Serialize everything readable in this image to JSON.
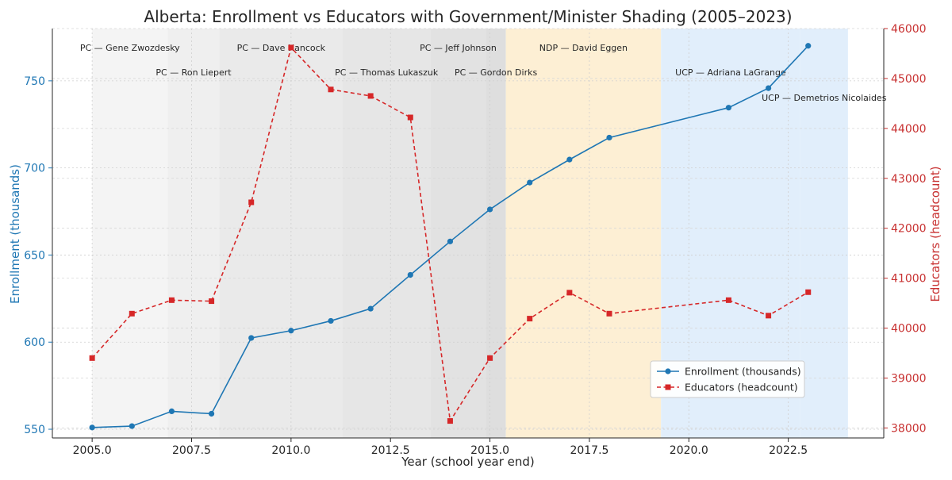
{
  "chart_data": {
    "type": "line",
    "title": "Alberta: Enrollment vs Educators with Government/Minister Shading (2005–2023)",
    "xlabel": "Year (school year end)",
    "ylabel_left": "Enrollment (thousands)",
    "ylabel_right": "Educators (headcount)",
    "xlim": [
      2004.0,
      2024.9
    ],
    "ylim_left": [
      545,
      780
    ],
    "ylim_right": [
      37800,
      46000
    ],
    "x_ticks": [
      {
        "value": 2005.0,
        "label": "2005.0"
      },
      {
        "value": 2007.5,
        "label": "2007.5"
      },
      {
        "value": 2010.0,
        "label": "2010.0"
      },
      {
        "value": 2012.5,
        "label": "2012.5"
      },
      {
        "value": 2015.0,
        "label": "2015.0"
      },
      {
        "value": 2017.5,
        "label": "2017.5"
      },
      {
        "value": 2020.0,
        "label": "2020.0"
      },
      {
        "value": 2022.5,
        "label": "2022.5"
      }
    ],
    "y_ticks_left": [
      {
        "value": 550,
        "label": "550"
      },
      {
        "value": 600,
        "label": "600"
      },
      {
        "value": 650,
        "label": "650"
      },
      {
        "value": 700,
        "label": "700"
      },
      {
        "value": 750,
        "label": "750"
      }
    ],
    "y_ticks_right": [
      {
        "value": 38000,
        "label": "38000"
      },
      {
        "value": 39000,
        "label": "39000"
      },
      {
        "value": 40000,
        "label": "40000"
      },
      {
        "value": 41000,
        "label": "41000"
      },
      {
        "value": 42000,
        "label": "42000"
      },
      {
        "value": 43000,
        "label": "43000"
      },
      {
        "value": 44000,
        "label": "44000"
      },
      {
        "value": 45000,
        "label": "45000"
      },
      {
        "value": 46000,
        "label": "46000"
      }
    ],
    "grid": true,
    "legend_position": "lower-right",
    "series": [
      {
        "name": "Enrollment (thousands)",
        "axis": "left",
        "color": "#1f77b4",
        "style": "solid",
        "marker": "circle",
        "points": [
          {
            "x": 2005,
            "y": 551
          },
          {
            "x": 2006,
            "y": 551.8
          },
          {
            "x": 2007,
            "y": 560.3
          },
          {
            "x": 2008,
            "y": 558.9
          },
          {
            "x": 2009,
            "y": 602.4
          },
          {
            "x": 2010,
            "y": 606.6
          },
          {
            "x": 2011,
            "y": 612.2
          },
          {
            "x": 2012,
            "y": 619.2
          },
          {
            "x": 2013,
            "y": 638.6
          },
          {
            "x": 2014,
            "y": 657.8
          },
          {
            "x": 2015,
            "y": 676.2
          },
          {
            "x": 2016,
            "y": 691.6
          },
          {
            "x": 2017,
            "y": 704.8
          },
          {
            "x": 2018,
            "y": 717.4
          },
          {
            "x": 2021,
            "y": 734.6
          },
          {
            "x": 2022,
            "y": 745.8
          },
          {
            "x": 2023,
            "y": 770.1
          }
        ]
      },
      {
        "name": "Educators (headcount)",
        "axis": "right",
        "color": "#d62728",
        "style": "dashed",
        "marker": "square",
        "points": [
          {
            "x": 2005,
            "y": 39400
          },
          {
            "x": 2006,
            "y": 40290
          },
          {
            "x": 2007,
            "y": 40560
          },
          {
            "x": 2008,
            "y": 40540
          },
          {
            "x": 2009,
            "y": 42520
          },
          {
            "x": 2010,
            "y": 45620
          },
          {
            "x": 2011,
            "y": 44780
          },
          {
            "x": 2012,
            "y": 44650
          },
          {
            "x": 2013,
            "y": 44220
          },
          {
            "x": 2014,
            "y": 38140
          },
          {
            "x": 2015,
            "y": 39400
          },
          {
            "x": 2016,
            "y": 40190
          },
          {
            "x": 2017,
            "y": 40710
          },
          {
            "x": 2018,
            "y": 40290
          },
          {
            "x": 2021,
            "y": 40560
          },
          {
            "x": 2022,
            "y": 40250
          },
          {
            "x": 2023,
            "y": 40720
          }
        ]
      }
    ],
    "bands": [
      {
        "label": "PC — Gene Zwozdesky",
        "start": 2005.0,
        "end": 2006.9,
        "color": "#f4f4f4",
        "row": 1
      },
      {
        "label": "PC — Ron Liepert",
        "start": 2006.9,
        "end": 2008.2,
        "color": "#efefef",
        "row": 2
      },
      {
        "label": "PC — Dave Hancock",
        "start": 2008.2,
        "end": 2011.3,
        "color": "#eaeaea",
        "row": 1
      },
      {
        "label": "PC — Thomas Lukaszuk",
        "start": 2011.3,
        "end": 2013.5,
        "color": "#e6e6e6",
        "row": 2
      },
      {
        "label": "PC — Jeff Johnson",
        "start": 2013.5,
        "end": 2014.9,
        "color": "#e2e2e2",
        "row": 1
      },
      {
        "label": "PC — Gordon Dirks",
        "start": 2014.9,
        "end": 2015.4,
        "color": "#dedede",
        "row": 2
      },
      {
        "label": "NDP — David Eggen",
        "start": 2015.4,
        "end": 2019.3,
        "color": "#fdefd4",
        "row": 1
      },
      {
        "label": "UCP — Adriana LaGrange",
        "start": 2019.3,
        "end": 2022.8,
        "color": "#e1eefb",
        "row": 2
      },
      {
        "label": "UCP — Demetrios Nicolaides",
        "start": 2022.8,
        "end": 2024.0,
        "color": "#e1eefb",
        "row": 3
      }
    ]
  }
}
